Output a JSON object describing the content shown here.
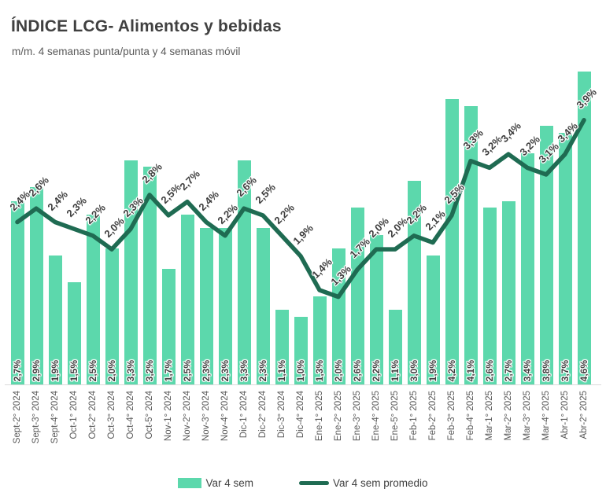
{
  "title": "ÍNDICE LCG- Alimentos y bebidas",
  "subtitle": "m/m. 4 semanas punta/punta y 4 semanas móvil",
  "colors": {
    "bar": "#5cd8ac",
    "line": "#1f6b52",
    "title_text": "#404040",
    "muted_text": "#595959",
    "baseline": "#d9d9d9"
  },
  "chart_data": {
    "type": "combo",
    "title": "ÍNDICE LCG- Alimentos y bebidas",
    "subtitle": "m/m. 4 semanas punta/punta y 4 semanas móvil",
    "categories": [
      "Sept-2° 2024",
      "Sept-3° 2024",
      "Sept-4° 2024",
      "Oct-1° 2024",
      "Oct-2° 2024",
      "Oct-3° 2024",
      "Oct-4° 2024",
      "Oct-5° 2024",
      "Nov-1° 2024",
      "Nov-2° 2024",
      "Nov-3° 2024",
      "Nov-4° 2024",
      "Dic-1° 2024",
      "Dic-2° 2024",
      "Dic-3° 2024",
      "Dic-4° 2024",
      "Ene-1° 2025",
      "Ene-2° 2025",
      "Ene-3° 2025",
      "Ene-4° 2025",
      "Ene-5° 2025",
      "Feb-1° 2025",
      "Feb-2° 2025",
      "Feb-3° 2025",
      "Feb-4° 2025",
      "Mar-1° 2025",
      "Mar-2° 2025",
      "Mar-3° 2025",
      "Mar-4° 2025",
      "Abr-1° 2025",
      "Abr-2° 2025"
    ],
    "series": [
      {
        "name": "Var 4 sem",
        "type": "bar",
        "color": "#5cd8ac",
        "values": [
          2.7,
          2.9,
          1.9,
          1.5,
          2.5,
          2.0,
          3.3,
          3.2,
          1.7,
          2.5,
          2.3,
          2.3,
          3.3,
          2.3,
          1.1,
          1.0,
          1.3,
          2.0,
          2.6,
          2.2,
          1.1,
          3.0,
          1.9,
          4.2,
          4.1,
          2.6,
          2.7,
          3.4,
          3.8,
          3.7,
          4.6
        ],
        "labels": [
          "2,7%",
          "2,9%",
          "1,9%",
          "1,5%",
          "2,5%",
          "2,0%",
          "3,3%",
          "3,2%",
          "1,7%",
          "2,5%",
          "2,3%",
          "2,3%",
          "3,3%",
          "2,3%",
          "1,1%",
          "1,0%",
          "1,3%",
          "2,0%",
          "2,6%",
          "2,2%",
          "1,1%",
          "3,0%",
          "1,9%",
          "4,2%",
          "4,1%",
          "2,6%",
          "2,7%",
          "3,4%",
          "3,8%",
          "3,7%",
          "4,6%"
        ]
      },
      {
        "name": "Var 4 sem promedio",
        "type": "line",
        "color": "#1f6b52",
        "values": [
          2.4,
          2.6,
          2.4,
          2.3,
          2.2,
          2.0,
          2.3,
          2.8,
          2.5,
          2.7,
          2.4,
          2.2,
          2.6,
          2.5,
          2.2,
          1.9,
          1.4,
          1.3,
          1.7,
          2.0,
          2.0,
          2.2,
          2.1,
          2.5,
          3.3,
          3.2,
          3.4,
          3.2,
          3.1,
          3.4,
          3.9
        ],
        "labels": [
          "2,4%",
          "2,6%",
          "2,4%",
          "2,3%",
          "2,2%",
          "2,0%",
          "2,3%",
          "2,8%",
          "2,5%",
          "2,7%",
          "2,4%",
          "2,2%",
          "2,6%",
          "2,5%",
          "2,2%",
          "1,9%",
          "1,4%",
          "1,3%",
          "1,7%",
          "2,0%",
          "2,0%",
          "2,2%",
          "2,1%",
          "2,5%",
          "3,3%",
          "3,2%",
          "3,4%",
          "3,2%",
          "3,1%",
          "3,4%",
          "3,9%"
        ]
      }
    ],
    "ylim": [
      0,
      4.65
    ],
    "grid": false,
    "axis": "x labels rotated 90°, no y axis shown, data labels on bars (rotated 90°) and on line points (rotated 45°)",
    "legend_position": "bottom",
    "value_format": "decimal comma, one decimal, percent"
  }
}
